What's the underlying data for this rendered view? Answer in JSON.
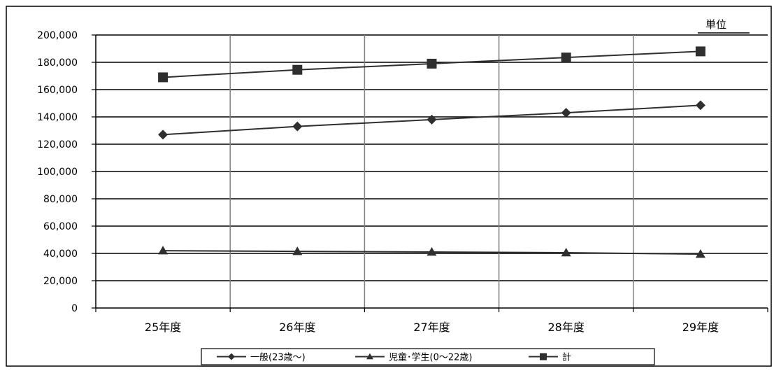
{
  "chart_data": {
    "type": "line",
    "unit_label": "単位",
    "categories": [
      "25年度",
      "26年度",
      "27年度",
      "28年度",
      "29年度"
    ],
    "ylim": [
      0,
      200000
    ],
    "yticks": [
      0,
      20000,
      40000,
      60000,
      80000,
      100000,
      120000,
      140000,
      160000,
      180000,
      200000
    ],
    "ytick_labels": [
      "0",
      "20,000",
      "40,000",
      "60,000",
      "80,000",
      "100,000",
      "120,000",
      "140,000",
      "160,000",
      "180,000",
      "200,000"
    ],
    "grid": true,
    "legend_position": "bottom",
    "series": [
      {
        "name": "一般(23歳～)",
        "marker": "diamond",
        "values": [
          127000,
          133000,
          138000,
          143000,
          148500
        ]
      },
      {
        "name": "児童･学生(0～22歳)",
        "marker": "triangle",
        "values": [
          42000,
          41500,
          41000,
          40500,
          39500
        ]
      },
      {
        "name": "計",
        "marker": "square",
        "values": [
          169000,
          174500,
          179000,
          183500,
          188000
        ]
      }
    ]
  }
}
